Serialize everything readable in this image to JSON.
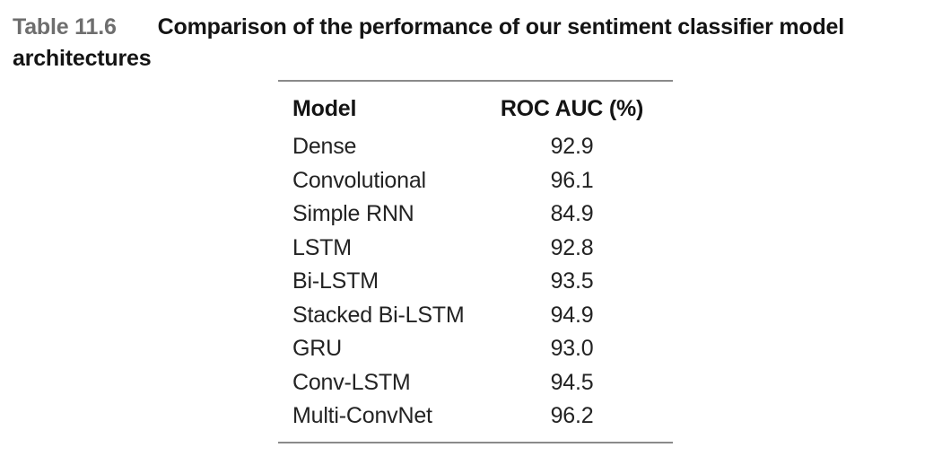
{
  "caption": {
    "label": "Table 11.6",
    "title": "Comparison of the performance of our sentiment classifier model architectures"
  },
  "table": {
    "columns": [
      "Model",
      "ROC AUC (%)"
    ],
    "rows": [
      {
        "model": "Dense",
        "roc_auc": "92.9"
      },
      {
        "model": "Convolutional",
        "roc_auc": "96.1"
      },
      {
        "model": "Simple RNN",
        "roc_auc": "84.9"
      },
      {
        "model": "LSTM",
        "roc_auc": "92.8"
      },
      {
        "model": "Bi-LSTM",
        "roc_auc": "93.5"
      },
      {
        "model": "Stacked Bi-LSTM",
        "roc_auc": "94.9"
      },
      {
        "model": "GRU",
        "roc_auc": "93.0"
      },
      {
        "model": "Conv-LSTM",
        "roc_auc": "94.5"
      },
      {
        "model": "Multi-ConvNet",
        "roc_auc": "96.2"
      }
    ]
  },
  "chart_data": {
    "type": "table",
    "title": "Table 11.6 Comparison of the performance of our sentiment classifier model architectures",
    "columns": [
      "Model",
      "ROC AUC (%)"
    ],
    "categories": [
      "Dense",
      "Convolutional",
      "Simple RNN",
      "LSTM",
      "Bi-LSTM",
      "Stacked Bi-LSTM",
      "GRU",
      "Conv-LSTM",
      "Multi-ConvNet"
    ],
    "values": [
      92.9,
      96.1,
      84.9,
      92.8,
      93.5,
      94.9,
      93.0,
      94.5,
      96.2
    ]
  },
  "colors": {
    "caption_label": "#6e6e6e",
    "body_text": "#232323",
    "heading_text": "#141414",
    "rule": "#8a8a8a",
    "background": "#ffffff"
  }
}
